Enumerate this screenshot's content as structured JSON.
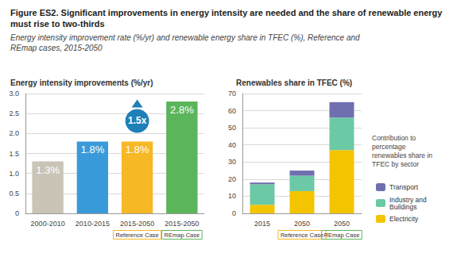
{
  "title": "Figure ES2. Significant improvements in energy intensity are needed and the share of renewable energy must rise to two-thirds",
  "subtitle": "Energy intensity improvement rate (%/yr) and renewable energy share in TFEC (%), Reference and REmap cases, 2015-2050",
  "chart_data": [
    {
      "type": "bar",
      "title": "Energy intensity improvements (%/yr)",
      "categories": [
        "2000-2010",
        "2010-2015",
        "2015-2050",
        "2015-2050"
      ],
      "category_sublabels": [
        null,
        null,
        "Reference Case",
        "REmap Case"
      ],
      "values": [
        1.3,
        1.8,
        1.8,
        2.8
      ],
      "value_labels": [
        "1.3%",
        "1.8%",
        "1.8%",
        "2.8%"
      ],
      "colors": [
        "#c9c4b6",
        "#3a9ad9",
        "#f6b824",
        "#5bb55b"
      ],
      "data_labels": true,
      "annotation": "1.5x",
      "ylim": [
        0,
        3
      ],
      "yticks": [
        0,
        0.5,
        {
          "value": 1,
          "label": "1.0"
        },
        1.5,
        {
          "value": 2,
          "label": "2.0"
        },
        2.5,
        {
          "value": 3,
          "label": "3.0"
        }
      ],
      "grid": true
    },
    {
      "type": "bar",
      "stacked": true,
      "title": "Renewables share in TFEC (%)",
      "categories": [
        "2015",
        "2050",
        "2050"
      ],
      "category_sublabels": [
        null,
        "Reference Case",
        "REmap Case"
      ],
      "series": [
        {
          "name": "Electricity",
          "color": "#f5c400",
          "values": [
            5,
            13,
            37
          ]
        },
        {
          "name": "Industry and Buildings",
          "color": "#6cc9a5",
          "values": [
            12,
            9,
            19
          ]
        },
        {
          "name": "Transport",
          "color": "#6f6fb0",
          "values": [
            1,
            3,
            9
          ]
        }
      ],
      "totals": [
        18,
        25,
        65
      ],
      "total_labels": [
        "18%",
        "25%",
        "65%"
      ],
      "legend": "right",
      "legend_title": "Contribution to percentage renewables share in TFEC by sector",
      "ylim": [
        0,
        70
      ],
      "yticks": [
        0,
        10,
        20,
        30,
        40,
        50,
        60,
        70
      ],
      "grid": true
    }
  ]
}
